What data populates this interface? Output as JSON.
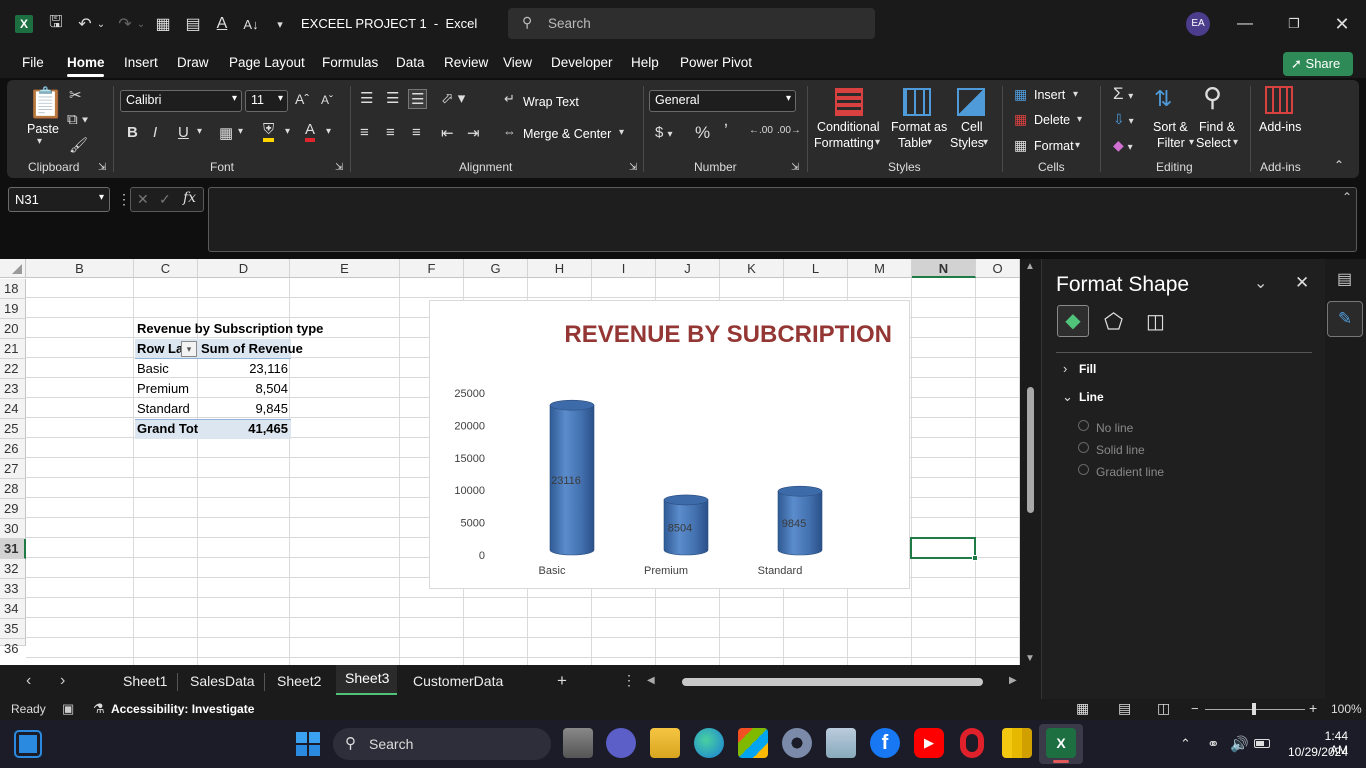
{
  "title_bar": {
    "doc_title": "EXCEEL PROJECT 1  -  Excel",
    "search_placeholder": "Search",
    "user_initials": "EA"
  },
  "menu": {
    "items": [
      "File",
      "Home",
      "Insert",
      "Draw",
      "Page Layout",
      "Formulas",
      "Data",
      "Review",
      "View",
      "Developer",
      "Help",
      "Power Pivot"
    ],
    "active": "Home",
    "share_label": "Share"
  },
  "ribbon": {
    "clipboard": {
      "paste": "Paste",
      "label": "Clipboard"
    },
    "font": {
      "name": "Calibri",
      "size": "11",
      "label": "Font"
    },
    "alignment": {
      "wrap_text": "Wrap Text",
      "merge_center": "Merge & Center",
      "label": "Alignment"
    },
    "number": {
      "format": "General",
      "label": "Number"
    },
    "styles": {
      "conditional": "Conditional",
      "formatting": "Formatting",
      "format_as": "Format as",
      "table": "Table",
      "cell": "Cell",
      "cell_styles": "Styles",
      "label": "Styles"
    },
    "cells": {
      "insert": "Insert",
      "delete": "Delete",
      "format": "Format",
      "label": "Cells"
    },
    "editing": {
      "sort": "Sort &",
      "filter": "Filter",
      "find": "Find &",
      "select": "Select",
      "label": "Editing"
    },
    "addins": {
      "addins": "Add-ins",
      "label": "Add-ins"
    }
  },
  "formula_bar": {
    "name_box": "N31",
    "formula": ""
  },
  "grid": {
    "columns": [
      "B",
      "C",
      "D",
      "E",
      "F",
      "G",
      "H",
      "I",
      "J",
      "K",
      "L",
      "M",
      "N",
      "O"
    ],
    "rows": [
      "18",
      "19",
      "20",
      "21",
      "22",
      "23",
      "24",
      "25",
      "26",
      "27",
      "28",
      "29",
      "30",
      "31",
      "32",
      "33",
      "34",
      "35",
      "36"
    ],
    "selected_cell": "N31"
  },
  "pivot": {
    "title": "Revenue by Subscription type",
    "header_row": "Row La",
    "header_value": "Sum of Revenue",
    "rows": [
      {
        "label": "Basic",
        "value": "23,116"
      },
      {
        "label": "Premium",
        "value": "8,504"
      },
      {
        "label": "Standard",
        "value": "9,845"
      }
    ],
    "total_label": "Grand Tot",
    "total_value": "41,465"
  },
  "chart_data": {
    "type": "bar",
    "title": "REVENUE BY SUBCRIPTION",
    "categories": [
      "Basic",
      "Premium",
      "Standard"
    ],
    "values": [
      23116,
      8504,
      9845
    ],
    "data_labels": [
      "23116",
      "8504",
      "9845"
    ],
    "ylim": [
      0,
      25000
    ],
    "yticks": [
      "0",
      "5000",
      "10000",
      "15000",
      "20000",
      "25000"
    ],
    "xlabel": "",
    "ylabel": "",
    "grid": false,
    "legend": "none",
    "bar_color": "#4a78b8",
    "title_color": "#943634"
  },
  "format_panel": {
    "title": "Format Shape",
    "sections": {
      "fill": "Fill",
      "line": "Line"
    },
    "line_options": [
      "No line",
      "Solid line",
      "Gradient line"
    ]
  },
  "sheet_tabs": {
    "tabs": [
      "Sheet1",
      "SalesData",
      "Sheet2",
      "Sheet3",
      "CustomerData"
    ],
    "active": "Sheet3"
  },
  "status_bar": {
    "ready": "Ready",
    "accessibility": "Accessibility: Investigate",
    "zoom": "100%"
  },
  "taskbar": {
    "search": "Search",
    "time": "1:44 AM",
    "date": "10/29/2024"
  },
  "colors": {
    "accent_green": "#1f7a45",
    "share_green": "#2e8b57"
  }
}
